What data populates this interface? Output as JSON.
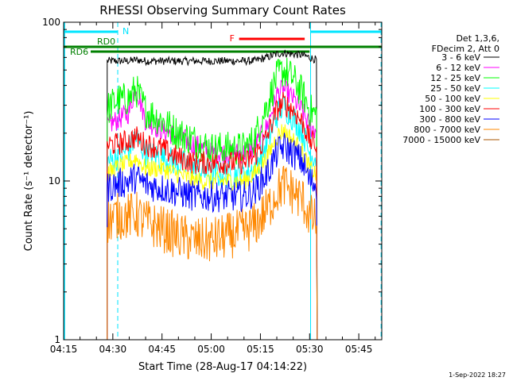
{
  "chart_data": {
    "type": "line",
    "title": "RHESSI Observing Summary Count Rates",
    "xlabel": "Start Time (28-Aug-17 04:14:22)",
    "ylabel": "Count Rate (s⁻¹ detector⁻¹)",
    "yscale": "log",
    "ylim": [
      1,
      100
    ],
    "xlim_minutes": [
      0,
      97
    ],
    "x_ticks": [
      {
        "label": "04:15",
        "value": 0
      },
      {
        "label": "04:30",
        "value": 15
      },
      {
        "label": "04:45",
        "value": 30
      },
      {
        "label": "05:00",
        "value": 45
      },
      {
        "label": "05:15",
        "value": 60
      },
      {
        "label": "05:30",
        "value": 75
      },
      {
        "label": "05:45",
        "value": 90
      }
    ],
    "y_ticks": [
      {
        "label": "1",
        "value": 1
      },
      {
        "label": "10",
        "value": 10
      },
      {
        "label": "100",
        "value": 100
      }
    ],
    "legend_header": [
      "Det 1,3,6,",
      "FDecim 2, Att 0"
    ],
    "legend_position": "right",
    "series": [
      {
        "name": "3 - 6 keV",
        "color": "#000000"
      },
      {
        "name": "6 - 12 keV",
        "color": "#ff00ff"
      },
      {
        "name": "12 - 25 keV",
        "color": "#00ff00"
      },
      {
        "name": "25 - 50 keV",
        "color": "#00ffff"
      },
      {
        "name": "50 - 100 keV",
        "color": "#ffff00"
      },
      {
        "name": "100 - 300 keV",
        "color": "#ff0000"
      },
      {
        "name": "300 - 800 keV",
        "color": "#0000ff"
      },
      {
        "name": "800 - 7000 keV",
        "color": "#ff8800"
      },
      {
        "name": "7000 - 15000 keV",
        "color": "#aa5500"
      }
    ],
    "profile_x": [
      13,
      16,
      20,
      22,
      25,
      30,
      35,
      40,
      45,
      50,
      55,
      58,
      62,
      65,
      67,
      70,
      73,
      75,
      77
    ],
    "profiles": [
      [
        57,
        57,
        57,
        58,
        57,
        57,
        57,
        57,
        57,
        57,
        57,
        57,
        60,
        63,
        64,
        63,
        62,
        60,
        58
      ],
      [
        22,
        24,
        27,
        40,
        24,
        21,
        19,
        17,
        15,
        15,
        15,
        16,
        22,
        35,
        38,
        33,
        27,
        22,
        21
      ],
      [
        28,
        32,
        33,
        38,
        28,
        24,
        20,
        18,
        16,
        16,
        16,
        18,
        30,
        45,
        50,
        44,
        35,
        28,
        26
      ],
      [
        13,
        14,
        16,
        19,
        15,
        14,
        13,
        12,
        11,
        11,
        11,
        12,
        17,
        26,
        30,
        25,
        20,
        15,
        14
      ],
      [
        11,
        12,
        13,
        14,
        12,
        12,
        11,
        10,
        10,
        10,
        10,
        11,
        14,
        19,
        21,
        18,
        15,
        12,
        11
      ],
      [
        17,
        17,
        18,
        19,
        17,
        16,
        14,
        13,
        13,
        13,
        13,
        14,
        19,
        28,
        31,
        28,
        23,
        18,
        17
      ],
      [
        9,
        9.5,
        10,
        10.5,
        9.5,
        9,
        8.5,
        8,
        8,
        8,
        8,
        8.5,
        11,
        15,
        16.5,
        15,
        13,
        10,
        9.5
      ],
      [
        5.5,
        6,
        6,
        6.2,
        5.5,
        5,
        4.5,
        4.2,
        4.2,
        4.5,
        4.8,
        5.2,
        6.5,
        8.5,
        9.5,
        8.5,
        7.5,
        6,
        5.5
      ],
      [
        0,
        0,
        0,
        0,
        0,
        0,
        0,
        0,
        0,
        0,
        0,
        0,
        0,
        0,
        0,
        0,
        0,
        0,
        0
      ]
    ],
    "data_window_minutes": [
      13.3,
      77.3
    ],
    "annotations": {
      "night_label": "N",
      "night_intervals": [
        [
          0,
          16.5
        ],
        [
          75.3,
          97
        ]
      ],
      "flag_F_label": "F",
      "flag_F_interval": [
        53.5,
        73.5
      ],
      "flag_RD0_label": "RD0",
      "flag_RD0_interval": [
        0,
        97
      ],
      "flag_RD6_label": "RD6",
      "flag_RD6_interval": [
        0,
        97
      ]
    },
    "grid": false
  },
  "timestamp": "1-Sep-2022 18:27"
}
